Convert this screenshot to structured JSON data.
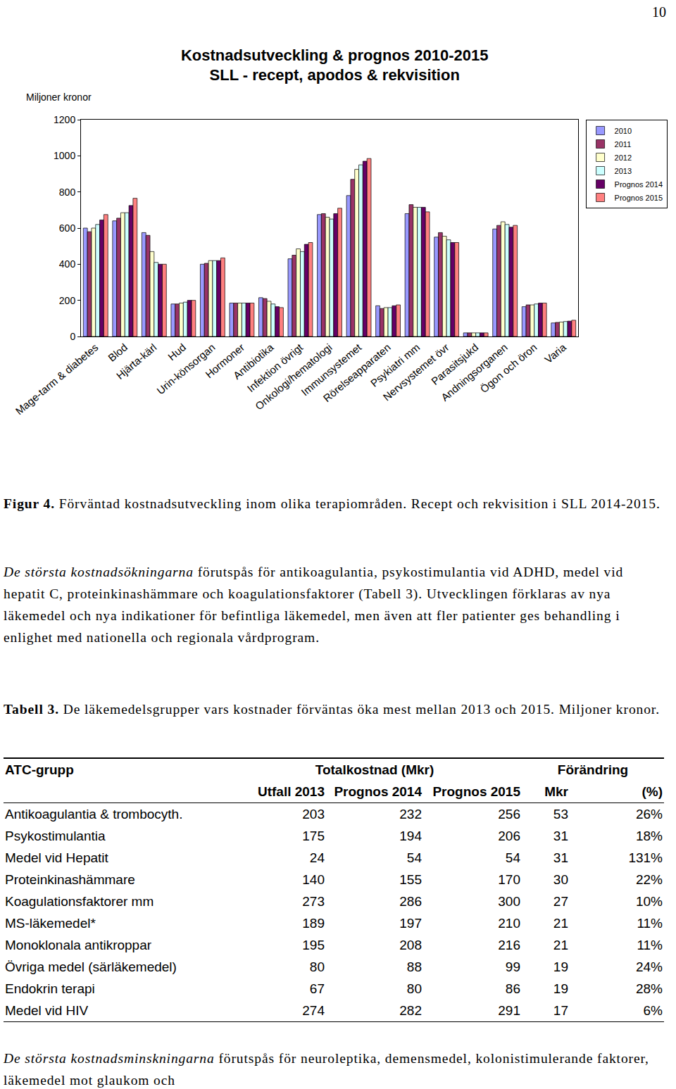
{
  "page_number": "10",
  "chart_data": {
    "type": "bar",
    "title": [
      "Kostnadsutveckling & prognos 2010-2015",
      "SLL - recept, apodos & rekvisition"
    ],
    "y_label": "Miljoner kronor",
    "categories": [
      "Mage-tarm & diabetes",
      "Blod",
      "Hjärta-kärl",
      "Hud",
      "Urin-könsorgan",
      "Hormoner",
      "Antibiotika",
      "Infektion övrigt",
      "Onkologi/hematologi",
      "Immunsystemet",
      "Rörelseapparaten",
      "Psykiatri mm",
      "Nervsystemet övr",
      "Parasitsjukd",
      "Andningsorganen",
      "Ögon och öron",
      "Varia"
    ],
    "series": [
      {
        "name": "2010",
        "color": "#9999ff",
        "values": [
          600,
          640,
          575,
          180,
          400,
          185,
          215,
          430,
          675,
          780,
          170,
          680,
          550,
          20,
          595,
          165,
          75
        ]
      },
      {
        "name": "2011",
        "color": "#993366",
        "values": [
          580,
          655,
          560,
          180,
          405,
          185,
          210,
          450,
          680,
          870,
          155,
          730,
          575,
          20,
          615,
          175,
          78
        ]
      },
      {
        "name": "2012",
        "color": "#ffffcc",
        "values": [
          600,
          685,
          470,
          185,
          420,
          185,
          195,
          485,
          660,
          925,
          160,
          715,
          555,
          20,
          635,
          175,
          80
        ]
      },
      {
        "name": "2013",
        "color": "#ccffff",
        "values": [
          620,
          685,
          410,
          190,
          420,
          185,
          180,
          470,
          650,
          950,
          160,
          715,
          535,
          20,
          620,
          180,
          83
        ]
      },
      {
        "name": "Prognos 2014",
        "color": "#660066",
        "values": [
          645,
          725,
          400,
          200,
          420,
          185,
          165,
          510,
          680,
          970,
          170,
          715,
          520,
          20,
          605,
          185,
          85
        ]
      },
      {
        "name": "Prognos 2015",
        "color": "#ff8080",
        "values": [
          675,
          765,
          400,
          200,
          435,
          185,
          160,
          520,
          710,
          985,
          175,
          690,
          520,
          20,
          615,
          185,
          90
        ]
      }
    ],
    "ylim": [
      0,
      1200
    ],
    "yticks": [
      0,
      200,
      400,
      600,
      800,
      1000,
      1200
    ],
    "grid": false,
    "legend": "right"
  },
  "caption": {
    "label": "Figur 4.",
    "text": "Förväntad kostnadsutveckling inom olika terapiområden. Recept och rekvisition i SLL 2014-2015."
  },
  "paragraph": {
    "emphasis": "De största kostnadsökningarna",
    "text": "förutspås för antikoagulantia, psykostimulantia vid ADHD, medel vid hepatit C, proteinkinashämmare och koagulationsfaktorer (Tabell 3). Utvecklingen förklaras av nya läkemedel och nya indikationer för befintliga läkemedel, men även att fler patienter ges behandling i enlighet med nationella och regionala vårdprogram."
  },
  "table_caption": {
    "label": "Tabell 3.",
    "text": "De läkemedelsgrupper vars kostnader förväntas öka mest mellan 2013 och 2015. Miljoner kronor."
  },
  "table": {
    "header": {
      "first": "ATC-grupp",
      "groups": [
        {
          "text": "Totalkostnad (Mkr)",
          "span": 3
        },
        {
          "text": "Förändring",
          "span": 2
        }
      ],
      "columns": [
        "Utfall 2013",
        "Prognos 2014",
        "Prognos 2015",
        "Mkr",
        "(%)"
      ]
    },
    "rows": [
      [
        "Antikoagulantia & trombocyth.",
        "203",
        "232",
        "256",
        "53",
        "26%"
      ],
      [
        "Psykostimulantia",
        "175",
        "194",
        "206",
        "31",
        "18%"
      ],
      [
        "Medel vid Hepatit",
        "24",
        "54",
        "54",
        "31",
        "131%"
      ],
      [
        "Proteinkinashämmare",
        "140",
        "155",
        "170",
        "30",
        "22%"
      ],
      [
        "Koagulationsfaktorer mm",
        "273",
        "286",
        "300",
        "27",
        "10%"
      ],
      [
        "MS-läkemedel*",
        "189",
        "197",
        "210",
        "21",
        "11%"
      ],
      [
        "Monoklonala antikroppar",
        "195",
        "208",
        "216",
        "21",
        "11%"
      ],
      [
        "Övriga medel (särläkemedel)",
        "80",
        "88",
        "99",
        "19",
        "24%"
      ],
      [
        "Endokrin terapi",
        "67",
        "80",
        "86",
        "19",
        "28%"
      ],
      [
        "Medel vid HIV",
        "274",
        "282",
        "291",
        "17",
        "6%"
      ]
    ]
  },
  "closing": {
    "emphasis": "De största kostnadsminskningarna",
    "text": "förutspås för neuroleptika, demensmedel, kolonistimulerande faktorer, läkemedel mot glaukom och"
  }
}
